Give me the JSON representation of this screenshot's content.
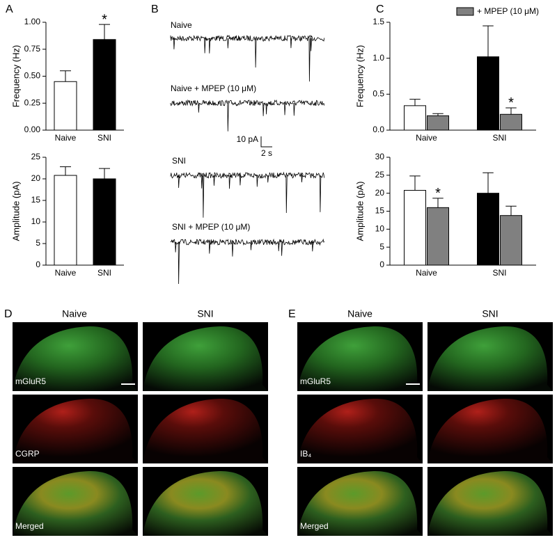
{
  "panel_letters": [
    "A",
    "B",
    "C",
    "D",
    "E"
  ],
  "chart_data": [
    {
      "type": "bar",
      "ylabel": "Frequency (Hz)",
      "categories": [
        "Naive",
        "SNI"
      ],
      "series": [
        {
          "colors": [
            "#ffffff",
            "#000000"
          ],
          "values": [
            0.45,
            0.84
          ],
          "errors": [
            0.1,
            0.14
          ],
          "annotations": [
            null,
            "*"
          ]
        }
      ],
      "ylim": [
        0,
        1
      ],
      "yticks": [
        {
          "value": 0,
          "label": "0.00"
        },
        {
          "value": 0.25,
          "label": "0.25"
        },
        {
          "value": 0.5,
          "label": "0.50"
        },
        {
          "value": 0.75,
          "label": "0.75"
        },
        {
          "value": 1,
          "label": "1.00"
        }
      ]
    },
    {
      "type": "bar",
      "ylabel": "Amplitude (pA)",
      "categories": [
        "Naive",
        "SNI"
      ],
      "series": [
        {
          "colors": [
            "#ffffff",
            "#000000"
          ],
          "values": [
            20.8,
            20.0
          ],
          "errors": [
            2.0,
            2.4
          ]
        }
      ],
      "ylim": [
        0,
        25
      ],
      "yticks": [
        0,
        5,
        10,
        15,
        20,
        25
      ]
    },
    {
      "type": "bar",
      "ylabel": "Frequency (Hz)",
      "categories": [
        "Naive",
        "SNI"
      ],
      "series": [
        {
          "colors": [
            "#ffffff",
            "#000000"
          ],
          "values": [
            0.34,
            1.02
          ],
          "errors": [
            0.09,
            0.43
          ]
        },
        {
          "name": "+ MPEP (10 μM)",
          "color": "#808080",
          "values": [
            0.2,
            0.22
          ],
          "errors": [
            0.03,
            0.09
          ],
          "annotations": [
            null,
            "*"
          ]
        }
      ],
      "ylim": [
        0,
        1.5
      ],
      "yticks": [
        {
          "value": 0,
          "label": "0.0"
        },
        {
          "value": 0.5,
          "label": "0.5"
        },
        {
          "value": 1,
          "label": "1.0"
        },
        {
          "value": 1.5,
          "label": "1.5"
        }
      ]
    },
    {
      "type": "bar",
      "ylabel": "Amplitude (pA)",
      "categories": [
        "Naive",
        "SNI"
      ],
      "series": [
        {
          "colors": [
            "#ffffff",
            "#000000"
          ],
          "values": [
            20.8,
            20.0
          ],
          "errors": [
            4.0,
            5.7
          ]
        },
        {
          "color": "#808080",
          "values": [
            16.0,
            13.8
          ],
          "errors": [
            2.6,
            2.6
          ],
          "annotations": [
            "*",
            null
          ]
        }
      ],
      "ylim": [
        0,
        30
      ],
      "yticks": [
        0,
        5,
        10,
        15,
        20,
        25,
        30
      ]
    }
  ],
  "traces": {
    "labels": [
      "Naive",
      "Naive + MPEP (10 μM)",
      "SNI",
      "SNI + MPEP (10 μM)"
    ],
    "scale_y": "10 pA",
    "scale_x": "2 s"
  },
  "panel_d": {
    "columns": [
      "Naive",
      "SNI"
    ],
    "rows": [
      "mGluR5",
      "CGRP",
      "Merged"
    ]
  },
  "panel_e": {
    "columns": [
      "Naive",
      "SNI"
    ],
    "rows": [
      "mGluR5",
      "IB₄",
      "Merged"
    ]
  }
}
